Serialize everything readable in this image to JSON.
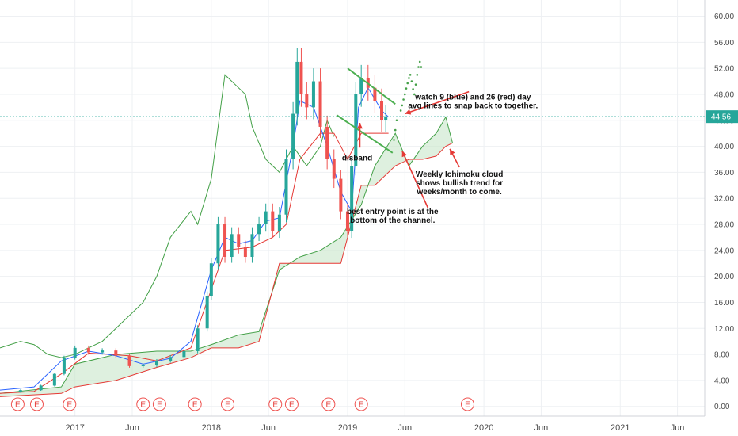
{
  "chart_data": {
    "type": "candlestick",
    "y_axis": {
      "ticks": [
        "60.00",
        "56.00",
        "52.00",
        "48.00",
        "44.00",
        "40.00",
        "36.00",
        "32.00",
        "28.00",
        "24.00",
        "20.00",
        "16.00",
        "12.00",
        "8.00",
        "4.00",
        "0.00"
      ],
      "ylim": [
        -1.5,
        62.5
      ],
      "side": "right"
    },
    "x_axis": {
      "ticks": [
        {
          "label": "2017",
          "t": 2017.0
        },
        {
          "label": "Jun",
          "t": 2017.42
        },
        {
          "label": "2018",
          "t": 2018.0
        },
        {
          "label": "Jun",
          "t": 2018.42
        },
        {
          "label": "2019",
          "t": 2019.0
        },
        {
          "label": "Jun",
          "t": 2019.42
        },
        {
          "label": "2020",
          "t": 2020.0
        },
        {
          "label": "Jun",
          "t": 2020.42
        },
        {
          "label": "2021",
          "t": 2021.0
        },
        {
          "label": "Jun",
          "t": 2021.42
        }
      ],
      "xlim": [
        2016.45,
        2021.62
      ]
    },
    "grid": true,
    "last_price": {
      "value": 44.56,
      "label": "44.56",
      "color": "#26a69a"
    },
    "colors": {
      "up": "#26a69a",
      "down": "#ef5350",
      "tenkan": "#2962ff",
      "kijun": "#e53935",
      "lagging": "#43a047",
      "cloud": "#c8e6c9",
      "annotation_arrow": "#e53935",
      "channel": "#4caf50"
    },
    "price": [
      [
        2016.45,
        2.2
      ],
      [
        2016.6,
        2.5
      ],
      [
        2016.75,
        3.2
      ],
      [
        2016.85,
        5.0
      ],
      [
        2016.92,
        7.5
      ],
      [
        2017.0,
        9.0
      ],
      [
        2017.1,
        8.3
      ],
      [
        2017.2,
        8.6
      ],
      [
        2017.3,
        7.8
      ],
      [
        2017.4,
        6.2
      ],
      [
        2017.5,
        6.3
      ],
      [
        2017.6,
        7.0
      ],
      [
        2017.7,
        7.6
      ],
      [
        2017.8,
        8.5
      ],
      [
        2017.9,
        12.0
      ],
      [
        2017.97,
        17.0
      ],
      [
        2018.0,
        22.0
      ],
      [
        2018.05,
        28.0
      ],
      [
        2018.1,
        23.0
      ],
      [
        2018.15,
        26.5
      ],
      [
        2018.2,
        24.5
      ],
      [
        2018.25,
        23.0
      ],
      [
        2018.3,
        26.5
      ],
      [
        2018.35,
        28.0
      ],
      [
        2018.4,
        30.0
      ],
      [
        2018.45,
        27.0
      ],
      [
        2018.5,
        29.5
      ],
      [
        2018.55,
        38.0
      ],
      [
        2018.6,
        45.0
      ],
      [
        2018.63,
        53.0
      ],
      [
        2018.66,
        48.0
      ],
      [
        2018.7,
        46.0
      ],
      [
        2018.75,
        50.0
      ],
      [
        2018.8,
        43.0
      ],
      [
        2018.85,
        38.0
      ],
      [
        2018.9,
        35.0
      ],
      [
        2018.95,
        30.0
      ],
      [
        2019.0,
        27.0
      ],
      [
        2019.03,
        37.0
      ],
      [
        2019.06,
        48.0
      ],
      [
        2019.1,
        50.5
      ],
      [
        2019.15,
        49.0
      ],
      [
        2019.2,
        47.0
      ],
      [
        2019.25,
        44.0
      ],
      [
        2019.28,
        44.56
      ]
    ],
    "tenkan": [
      [
        2016.45,
        2.5
      ],
      [
        2016.7,
        3.0
      ],
      [
        2016.9,
        7.0
      ],
      [
        2017.1,
        8.5
      ],
      [
        2017.3,
        7.8
      ],
      [
        2017.5,
        6.5
      ],
      [
        2017.7,
        7.4
      ],
      [
        2017.85,
        10.0
      ],
      [
        2018.0,
        21.0
      ],
      [
        2018.1,
        26.0
      ],
      [
        2018.2,
        25.0
      ],
      [
        2018.3,
        25.5
      ],
      [
        2018.4,
        28.5
      ],
      [
        2018.5,
        29.0
      ],
      [
        2018.6,
        40.0
      ],
      [
        2018.65,
        47.0
      ],
      [
        2018.75,
        46.0
      ],
      [
        2018.85,
        40.0
      ],
      [
        2018.95,
        33.0
      ],
      [
        2019.03,
        30.0
      ],
      [
        2019.08,
        46.0
      ],
      [
        2019.15,
        49.0
      ],
      [
        2019.25,
        45.5
      ],
      [
        2019.3,
        44.5
      ]
    ],
    "kijun": [
      [
        2016.45,
        2.0
      ],
      [
        2016.7,
        2.3
      ],
      [
        2016.9,
        5.0
      ],
      [
        2017.1,
        8.2
      ],
      [
        2017.4,
        7.8
      ],
      [
        2017.6,
        7.0
      ],
      [
        2017.85,
        9.0
      ],
      [
        2018.0,
        18.0
      ],
      [
        2018.1,
        24.0
      ],
      [
        2018.3,
        24.5
      ],
      [
        2018.45,
        26.0
      ],
      [
        2018.55,
        28.0
      ],
      [
        2018.65,
        38.0
      ],
      [
        2018.8,
        42.0
      ],
      [
        2018.9,
        42.0
      ],
      [
        2019.0,
        38.0
      ],
      [
        2019.1,
        42.0
      ],
      [
        2019.2,
        42.0
      ],
      [
        2019.3,
        42.0
      ]
    ],
    "lagging": [
      [
        2016.45,
        9.0
      ],
      [
        2016.6,
        10.0
      ],
      [
        2016.7,
        9.5
      ],
      [
        2016.8,
        8.0
      ],
      [
        2016.9,
        7.5
      ],
      [
        2017.0,
        8.0
      ],
      [
        2017.2,
        10.0
      ],
      [
        2017.4,
        14.0
      ],
      [
        2017.5,
        16.0
      ],
      [
        2017.6,
        20.0
      ],
      [
        2017.7,
        26.0
      ],
      [
        2017.85,
        30.0
      ],
      [
        2017.9,
        28.0
      ],
      [
        2018.0,
        35.0
      ],
      [
        2018.1,
        51.0
      ],
      [
        2018.15,
        50.0
      ],
      [
        2018.25,
        48.0
      ],
      [
        2018.3,
        43.0
      ],
      [
        2018.4,
        38.0
      ],
      [
        2018.5,
        36.0
      ],
      [
        2018.6,
        40.0
      ],
      [
        2018.7,
        37.0
      ],
      [
        2018.8,
        40.0
      ],
      [
        2018.85,
        44.0
      ],
      [
        2018.9,
        41.5
      ]
    ],
    "cloud_span_a": [
      [
        2016.45,
        2.0
      ],
      [
        2016.9,
        3.0
      ],
      [
        2017.0,
        6.5
      ],
      [
        2017.3,
        8.0
      ],
      [
        2017.6,
        8.5
      ],
      [
        2017.85,
        8.5
      ],
      [
        2018.0,
        9.5
      ],
      [
        2018.2,
        11.0
      ],
      [
        2018.35,
        11.5
      ],
      [
        2018.5,
        21.0
      ],
      [
        2018.65,
        23.0
      ],
      [
        2018.8,
        24.0
      ],
      [
        2018.95,
        26.0
      ],
      [
        2019.1,
        31.0
      ],
      [
        2019.2,
        37.0
      ],
      [
        2019.35,
        42.0
      ],
      [
        2019.45,
        37.0
      ],
      [
        2019.55,
        40.0
      ],
      [
        2019.65,
        42.0
      ],
      [
        2019.72,
        44.5
      ],
      [
        2019.77,
        40.5
      ]
    ],
    "cloud_span_b": [
      [
        2016.45,
        1.5
      ],
      [
        2016.9,
        2.0
      ],
      [
        2017.0,
        3.0
      ],
      [
        2017.3,
        4.0
      ],
      [
        2017.6,
        6.0
      ],
      [
        2017.85,
        7.5
      ],
      [
        2018.0,
        9.0
      ],
      [
        2018.2,
        9.0
      ],
      [
        2018.35,
        10.0
      ],
      [
        2018.5,
        22.0
      ],
      [
        2018.65,
        22.0
      ],
      [
        2018.8,
        22.0
      ],
      [
        2018.95,
        22.0
      ],
      [
        2019.1,
        34.0
      ],
      [
        2019.2,
        34.0
      ],
      [
        2019.35,
        37.0
      ],
      [
        2019.45,
        38.0
      ],
      [
        2019.55,
        38.0
      ],
      [
        2019.65,
        38.5
      ],
      [
        2019.72,
        40.0
      ],
      [
        2019.77,
        40.5
      ]
    ],
    "earnings_markers": [
      2016.58,
      2016.72,
      2016.96,
      2017.5,
      2017.62,
      2017.88,
      2018.12,
      2018.47,
      2018.59,
      2018.86,
      2019.1,
      2019.88
    ],
    "earnings_label": "E",
    "annotations": [
      {
        "lines": [
          "watch 9 (blue) and 26 (red) day",
          "avg lines to snap back to together."
        ],
        "x": 2019.92,
        "y": 47.2
      },
      {
        "lines": [
          "Weekly Ichimoku cloud",
          "shows bullish trend for",
          "weeks/month to come."
        ],
        "x": 2019.82,
        "y": 35.3
      },
      {
        "lines": [
          "best entry point is at the",
          "bottom of the channel."
        ],
        "x": 2019.33,
        "y": 29.6
      },
      {
        "lines": [
          "disband"
        ],
        "x": 2019.07,
        "y": 37.8
      }
    ],
    "channel_lines": [
      {
        "from": [
          2019.0,
          52.0
        ],
        "to": [
          2019.35,
          46.5
        ]
      },
      {
        "from": [
          2018.92,
          44.8
        ],
        "to": [
          2019.33,
          39.0
        ]
      }
    ],
    "projection_dots": [
      [
        2019.39,
        45.5
      ],
      [
        2019.4,
        46.3
      ],
      [
        2019.41,
        47.2
      ],
      [
        2019.42,
        48.0
      ],
      [
        2019.43,
        48.9
      ],
      [
        2019.44,
        49.7
      ],
      [
        2019.45,
        50.5
      ],
      [
        2019.46,
        51.0
      ],
      [
        2019.47,
        50.0
      ],
      [
        2019.48,
        48.8
      ],
      [
        2019.49,
        48.0
      ],
      [
        2019.5,
        49.5
      ],
      [
        2019.51,
        51.0
      ],
      [
        2019.52,
        52.2
      ],
      [
        2019.53,
        53.0
      ],
      [
        2019.54,
        52.2
      ],
      [
        2019.36,
        44.0
      ],
      [
        2019.35,
        42.5
      ],
      [
        2019.34,
        41.0
      ]
    ],
    "arrows": [
      {
        "from": [
          2019.89,
          48.4
        ],
        "to": [
          2019.42,
          45.0
        ]
      },
      {
        "from": [
          2019.82,
          36.8
        ],
        "to": [
          2019.75,
          39.6
        ]
      },
      {
        "from": [
          2019.59,
          30.5
        ],
        "to": [
          2019.4,
          39.3
        ]
      },
      {
        "from": [
          2019.09,
          39.8
        ],
        "to": [
          2019.09,
          43.6
        ]
      }
    ]
  }
}
